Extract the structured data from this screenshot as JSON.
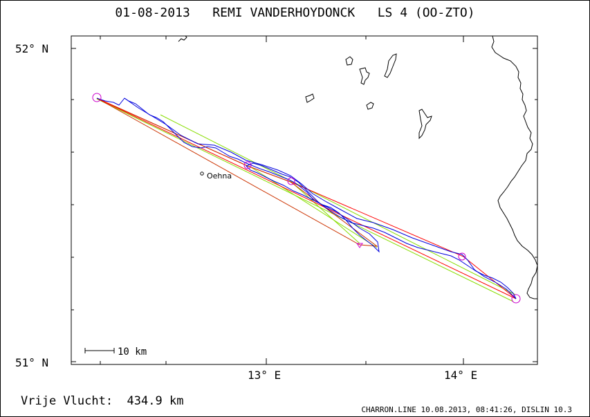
{
  "header": {
    "title": "01-08-2013   REMI VANDERHOYDONCK   LS 4 (OO-ZTO)"
  },
  "map": {
    "lat_labels": {
      "top": "52° N",
      "bottom": "51° N"
    },
    "lon_labels": [
      "13° E",
      "14° E"
    ],
    "scale_bar_label": "10 km",
    "place_name": "Oehna",
    "colors": {
      "track": "#0000dd",
      "declared_task": "#ff0000",
      "optimized_task": "#cc3300",
      "sector_lines": "#88dd00",
      "turnpoints": "#cc00cc",
      "borders": "#000000"
    }
  },
  "footer": {
    "distance_label": "Vrije Vlucht:",
    "distance_value": "434.9 km",
    "software_info": "CHARRON.LINE 10.08.2013, 08:41:26, DISLIN 10.3"
  }
}
